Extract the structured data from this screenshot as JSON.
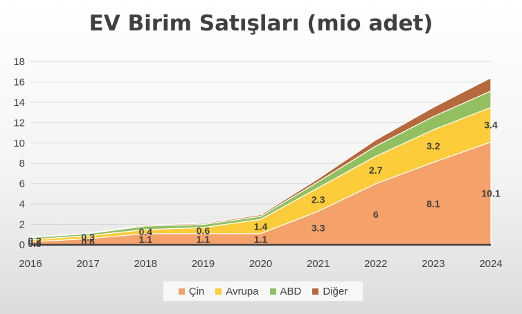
{
  "chart_data": {
    "type": "area",
    "stacked": true,
    "title": "EV Birim Satışları (mio adet)",
    "xlabel": "",
    "ylabel": "",
    "categories": [
      "2016",
      "2017",
      "2018",
      "2019",
      "2020",
      "2021",
      "2022",
      "2023",
      "2024"
    ],
    "ylim": [
      0,
      18
    ],
    "yticks": [
      "0",
      "2",
      "4",
      "6",
      "8",
      "10",
      "12",
      "14",
      "16",
      "18"
    ],
    "grid": true,
    "legend_position": "bottom",
    "series": [
      {
        "name": "Çin",
        "color": "#f4a16a",
        "values": [
          0.3,
          0.6,
          1.1,
          1.1,
          1.1,
          3.3,
          6,
          8.1,
          10.1
        ],
        "labels": [
          "0.3",
          "0.6",
          "1.1",
          "1.1",
          "1.1",
          "3.3",
          "6",
          "8.1",
          "10.1"
        ]
      },
      {
        "name": "Avrupa",
        "color": "#fccc3a",
        "values": [
          0.2,
          0.3,
          0.4,
          0.6,
          1.4,
          2.3,
          2.7,
          3.2,
          3.4
        ],
        "labels": [
          "0.2",
          "0.3",
          "0.4",
          "0.6",
          "1.4",
          "2.3",
          "2.7",
          "3.2",
          "3.4"
        ]
      },
      {
        "name": "ABD",
        "color": "#92c060",
        "values": [
          0.2,
          0.2,
          0.35,
          0.3,
          0.3,
          0.6,
          1.0,
          1.3,
          1.6
        ]
      },
      {
        "name": "Diğer",
        "color": "#b5693c",
        "values": [
          0.05,
          0.05,
          0.1,
          0.1,
          0.15,
          0.3,
          0.6,
          0.9,
          1.3
        ]
      }
    ]
  }
}
